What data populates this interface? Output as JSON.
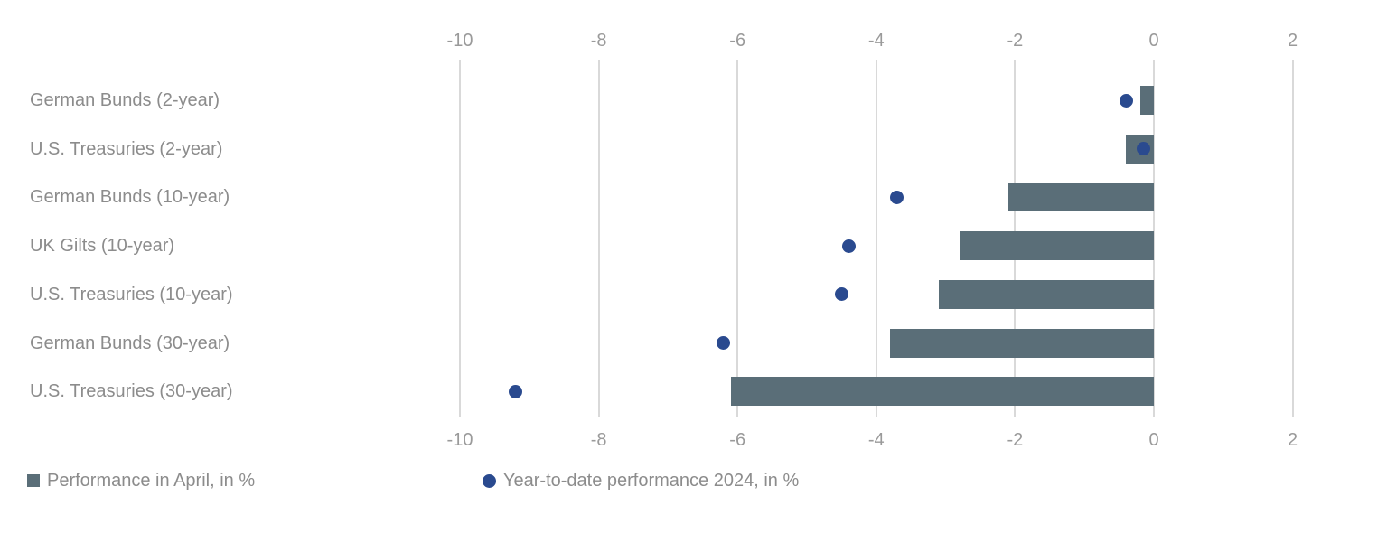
{
  "chart_data": {
    "type": "bar",
    "subtype": "horizontal-bars-with-scatter-dots",
    "title": "",
    "orientation": "horizontal",
    "categories": [
      "German Bunds (2-year)",
      "U.S. Treasuries (2-year)",
      "German Bunds (10-year)",
      "UK Gilts (10-year)",
      "U.S. Treasuries (10-year)",
      "German Bunds (30-year)",
      "U.S. Treasuries (30-year)"
    ],
    "series": [
      {
        "name": "Performance in April, in %",
        "type": "bar",
        "marker": "square",
        "color": "#5a6e78",
        "values": [
          -0.2,
          -0.4,
          -2.1,
          -2.8,
          -3.1,
          -3.8,
          -6.1
        ]
      },
      {
        "name": "Year-to-date performance 2024, in %",
        "type": "scatter",
        "marker": "circle",
        "color": "#2a4a8f",
        "values": [
          -0.4,
          -0.15,
          -3.7,
          -4.4,
          -4.5,
          -6.2,
          -9.2
        ]
      }
    ],
    "xlim": [
      -11,
      3.4
    ],
    "xticks": [
      -10,
      -8,
      -6,
      -4,
      -2,
      0,
      2
    ],
    "xtick_labels": [
      "-10",
      "-8",
      "-6",
      "-4",
      "-2",
      "0",
      "2"
    ],
    "axis_label_positions": "top and bottom",
    "grid": "vertical",
    "legend_position": "bottom-left"
  },
  "colors": {
    "bar": "#5a6e78",
    "dot": "#2a4a8f",
    "grid": "#d9d9d9",
    "tick_text": "#9a9a9a",
    "category_text": "#8c8c8c",
    "background": "#ffffff"
  }
}
